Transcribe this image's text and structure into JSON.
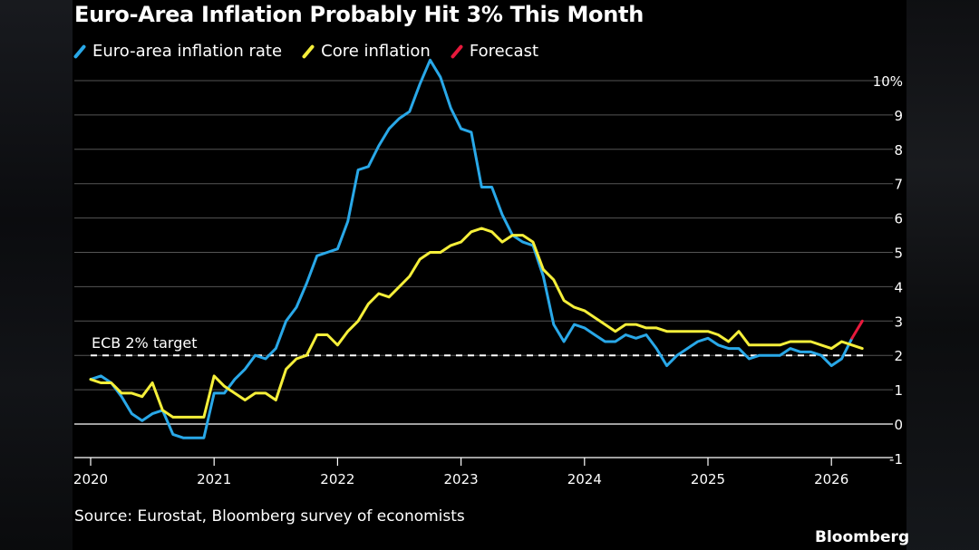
{
  "chart_data": {
    "type": "line",
    "title": "Euro-Area Inflation Probably Hit 3% This Month",
    "source": "Source: Eurostat, Bloomberg survey of economists",
    "brand": "Bloomberg",
    "xlim": [
      2020.0,
      2026.5
    ],
    "ylim": [
      -1,
      10
    ],
    "x_ticks": [
      {
        "value": 2020,
        "label": "2020"
      },
      {
        "value": 2021,
        "label": "2021"
      },
      {
        "value": 2022,
        "label": "2022"
      },
      {
        "value": 2023,
        "label": "2023"
      },
      {
        "value": 2024,
        "label": "2024"
      },
      {
        "value": 2025,
        "label": "2025"
      },
      {
        "value": 2026,
        "label": "2026"
      }
    ],
    "y_ticks": [
      {
        "value": 10,
        "label": "10%"
      },
      {
        "value": 9,
        "label": "9"
      },
      {
        "value": 8,
        "label": "8"
      },
      {
        "value": 7,
        "label": "7"
      },
      {
        "value": 6,
        "label": "6"
      },
      {
        "value": 5,
        "label": "5"
      },
      {
        "value": 4,
        "label": "4"
      },
      {
        "value": 3,
        "label": "3"
      },
      {
        "value": 2,
        "label": "2"
      },
      {
        "value": 1,
        "label": "1"
      },
      {
        "value": 0,
        "label": "0"
      },
      {
        "value": -1,
        "label": "-1"
      }
    ],
    "reference_line": {
      "value": 2,
      "label": "ECB 2% target"
    },
    "legend": [
      {
        "name": "Euro-area inflation rate",
        "color": "#29a8e8"
      },
      {
        "name": "Core inflation",
        "color": "#f5ef3a"
      },
      {
        "name": "Forecast",
        "color": "#e8193c"
      }
    ],
    "series": [
      {
        "name": "Euro-area inflation rate",
        "color": "#29a8e8",
        "start": 2020.0,
        "step_months": 1,
        "values": [
          1.3,
          1.4,
          1.2,
          0.8,
          0.3,
          0.1,
          0.3,
          0.4,
          -0.3,
          -0.4,
          -0.4,
          -0.4,
          0.9,
          0.9,
          1.3,
          1.6,
          2.0,
          1.9,
          2.2,
          3.0,
          3.4,
          4.1,
          4.9,
          5.0,
          5.1,
          5.9,
          7.4,
          7.5,
          8.1,
          8.6,
          8.9,
          9.1,
          9.9,
          10.6,
          10.1,
          9.2,
          8.6,
          8.5,
          6.9,
          6.9,
          6.1,
          5.5,
          5.3,
          5.2,
          4.3,
          2.9,
          2.4,
          2.9,
          2.8,
          2.6,
          2.4,
          2.4,
          2.6,
          2.5,
          2.6,
          2.2,
          1.7,
          2.0,
          2.2,
          2.4,
          2.5,
          2.3,
          2.2,
          2.2,
          1.9,
          2.0,
          2.0,
          2.0,
          2.2,
          2.1,
          2.1,
          2.0,
          1.7,
          1.9,
          2.5
        ],
        "forecast": {
          "color": "#e8193c",
          "start_value": 2.5,
          "end_value": 3.0
        }
      },
      {
        "name": "Core inflation",
        "color": "#f5ef3a",
        "start": 2020.0,
        "step_months": 1,
        "values": [
          1.3,
          1.2,
          1.2,
          0.9,
          0.9,
          0.8,
          1.2,
          0.4,
          0.2,
          0.2,
          0.2,
          0.2,
          1.4,
          1.1,
          0.9,
          0.7,
          0.9,
          0.9,
          0.7,
          1.6,
          1.9,
          2.0,
          2.6,
          2.6,
          2.3,
          2.7,
          3.0,
          3.5,
          3.8,
          3.7,
          4.0,
          4.3,
          4.8,
          5.0,
          5.0,
          5.2,
          5.3,
          5.6,
          5.7,
          5.6,
          5.3,
          5.5,
          5.5,
          5.3,
          4.5,
          4.2,
          3.6,
          3.4,
          3.3,
          3.1,
          2.9,
          2.7,
          2.9,
          2.9,
          2.8,
          2.8,
          2.7,
          2.7,
          2.7,
          2.7,
          2.7,
          2.6,
          2.4,
          2.7,
          2.3,
          2.3,
          2.3,
          2.3,
          2.4,
          2.4,
          2.4,
          2.3,
          2.2,
          2.4,
          2.3,
          2.2
        ]
      }
    ]
  }
}
